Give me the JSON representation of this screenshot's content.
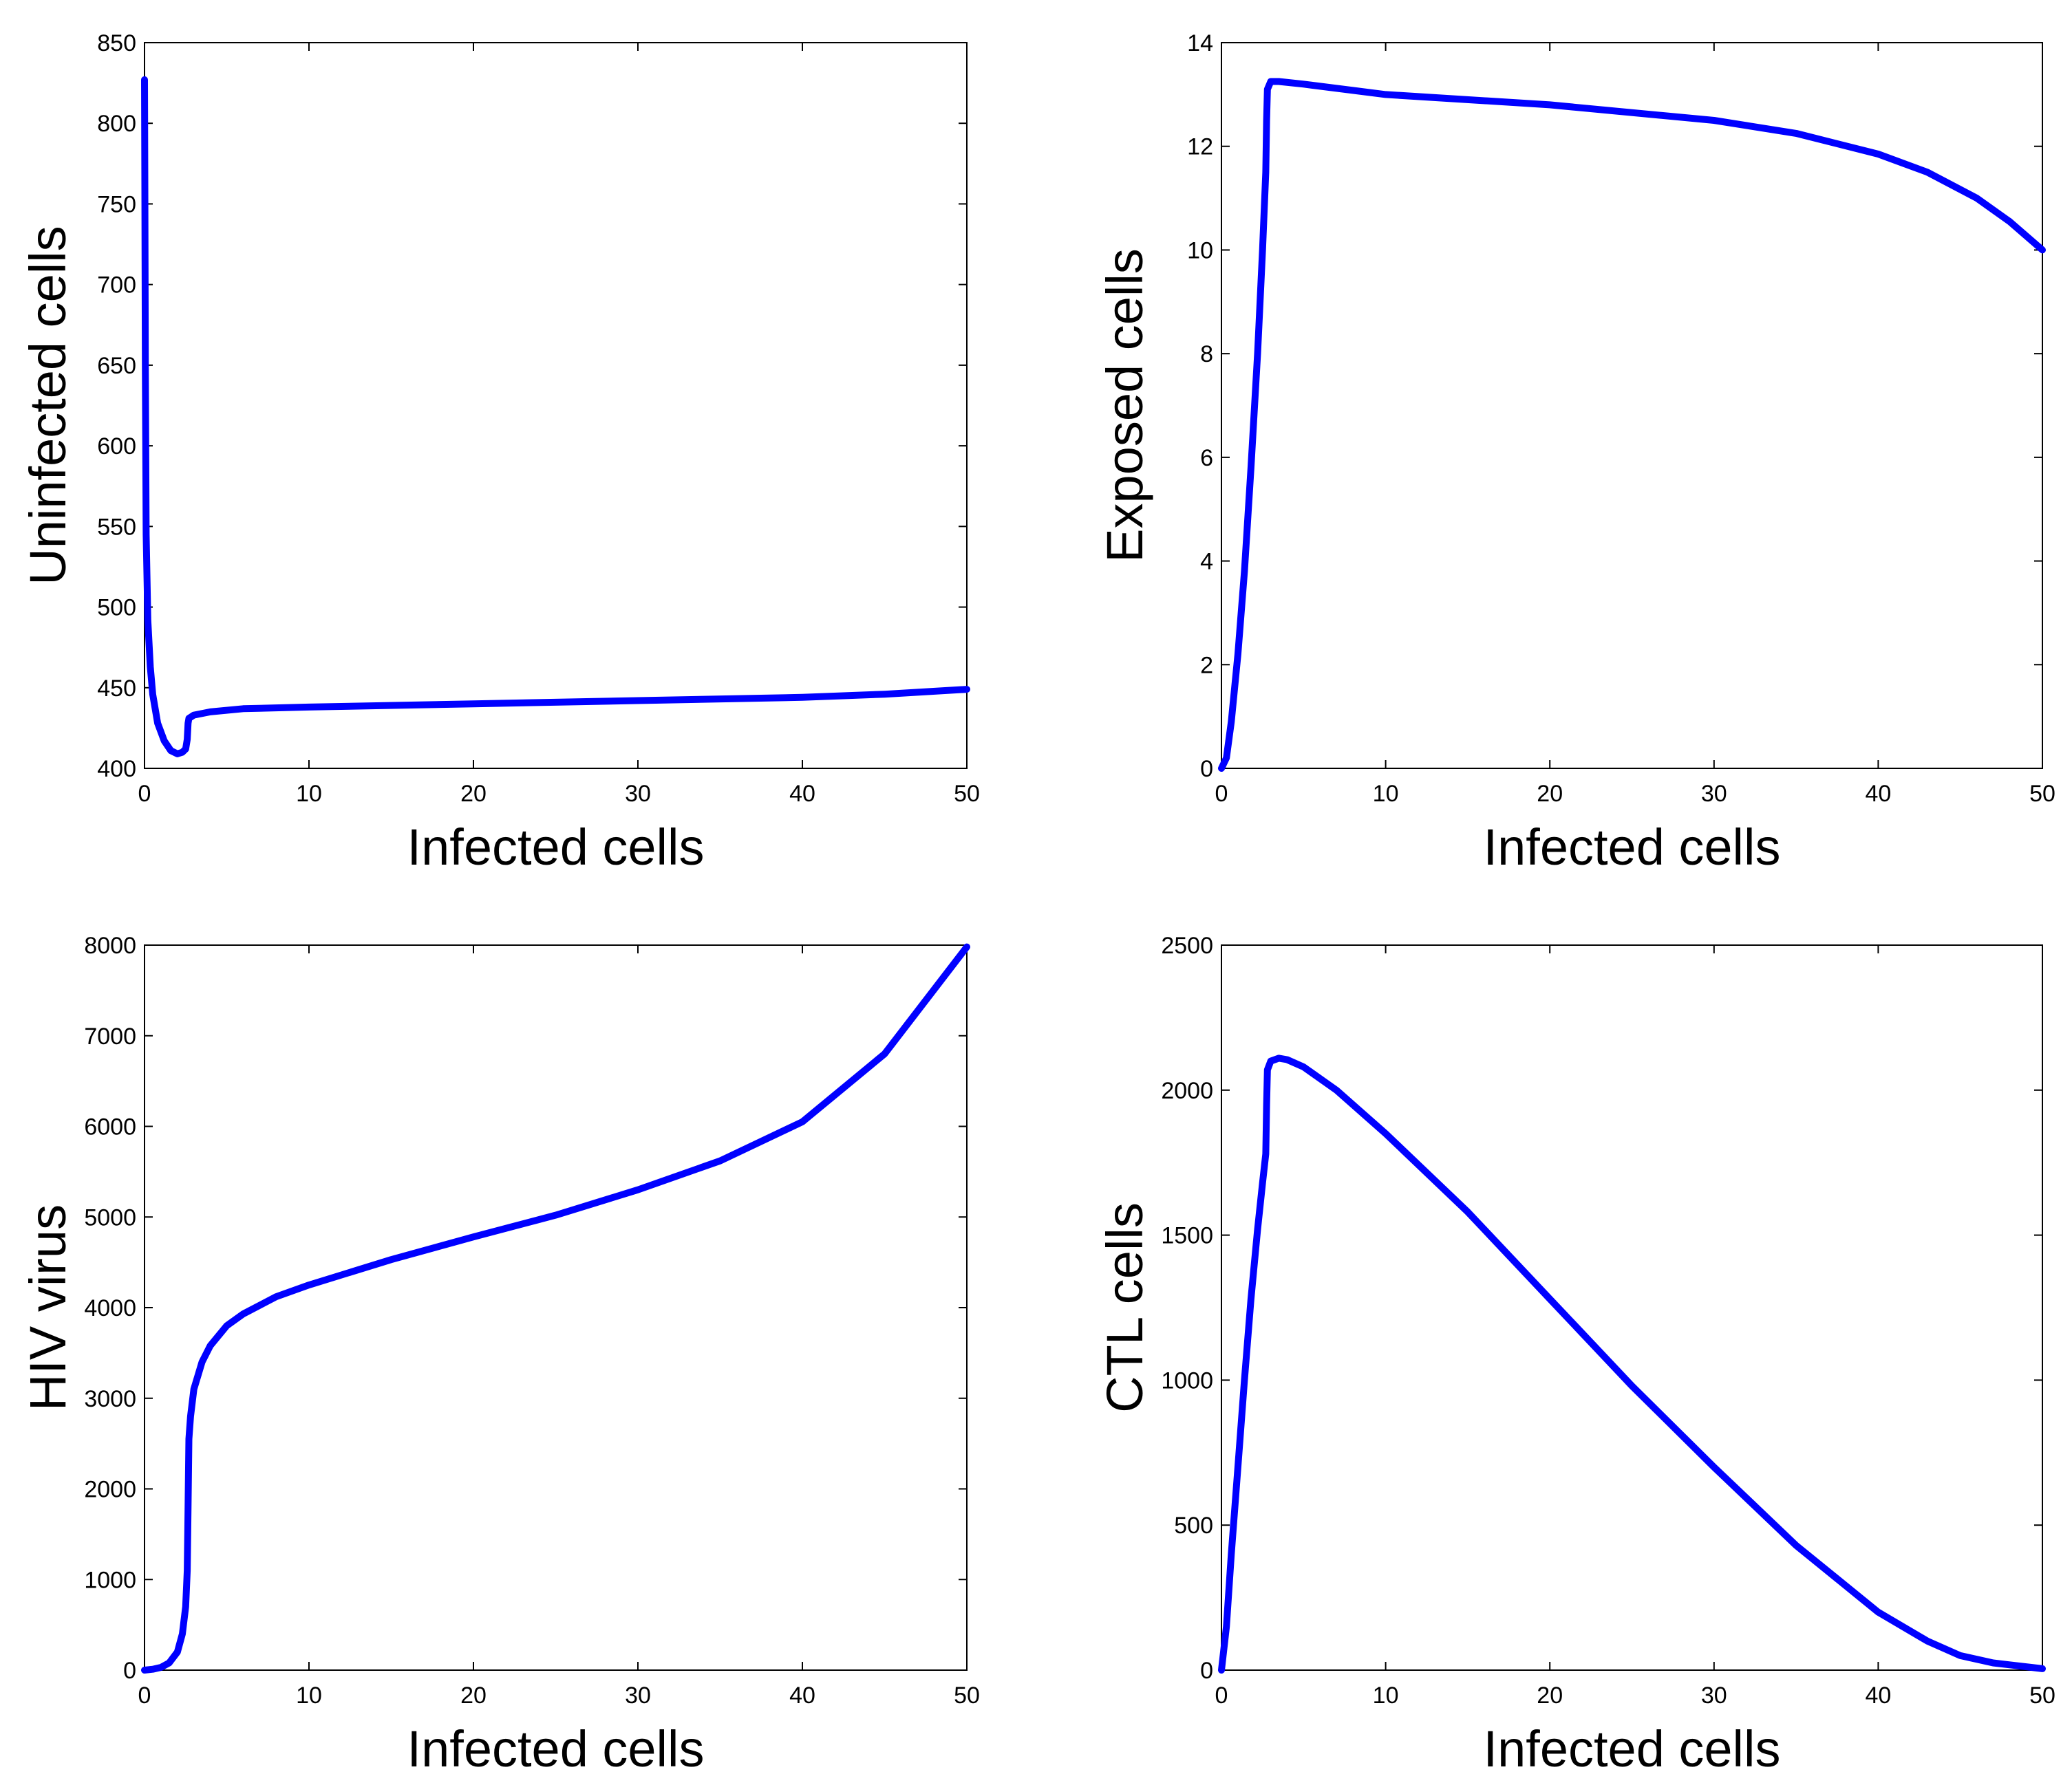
{
  "chart_data": [
    {
      "type": "line",
      "xlabel": "Infected cells",
      "ylabel": "Uninfected cells",
      "xlim": [
        0,
        50
      ],
      "ylim": [
        400,
        850
      ],
      "xticks": [
        "0",
        "10",
        "20",
        "30",
        "40",
        "50"
      ],
      "yticks": [
        "400",
        "450",
        "500",
        "550",
        "600",
        "650",
        "700",
        "750",
        "800",
        "850"
      ],
      "grid": false,
      "series": [
        {
          "name": "Uninfected cells",
          "color": "#0000ff",
          "x": [
            0,
            0.02,
            0.05,
            0.1,
            0.2,
            0.35,
            0.5,
            0.8,
            1.2,
            1.6,
            2.0,
            2.3,
            2.5,
            2.6,
            2.65,
            2.7,
            3,
            4,
            6,
            10,
            20,
            30,
            40,
            45,
            50
          ],
          "y": [
            827,
            760,
            650,
            545,
            492,
            463,
            446,
            428,
            417,
            411,
            409,
            410,
            412,
            418,
            428,
            431,
            433,
            435,
            437,
            438,
            440,
            442,
            444,
            446,
            449
          ]
        }
      ]
    },
    {
      "type": "line",
      "xlabel": "Infected cells",
      "ylabel": "Exposed cells",
      "xlim": [
        0,
        50
      ],
      "ylim": [
        0,
        14
      ],
      "xticks": [
        "0",
        "10",
        "20",
        "30",
        "40",
        "50"
      ],
      "yticks": [
        "0",
        "2",
        "4",
        "6",
        "8",
        "10",
        "12",
        "14"
      ],
      "grid": false,
      "series": [
        {
          "name": "Exposed cells",
          "color": "#0000ff",
          "x": [
            0,
            0.3,
            0.6,
            1.0,
            1.4,
            1.8,
            2.2,
            2.5,
            2.7,
            2.75,
            2.8,
            3.0,
            3.5,
            5,
            10,
            20,
            30,
            35,
            40,
            43,
            46,
            48,
            50
          ],
          "y": [
            0,
            0.2,
            0.9,
            2.2,
            3.8,
            5.8,
            8.0,
            10.0,
            11.5,
            12.5,
            13.1,
            13.25,
            13.25,
            13.2,
            13.0,
            12.8,
            12.5,
            12.25,
            11.85,
            11.5,
            11.0,
            10.55,
            10.0
          ]
        }
      ]
    },
    {
      "type": "line",
      "xlabel": "Infected cells",
      "ylabel": "HIV virus",
      "xlim": [
        0,
        50
      ],
      "ylim": [
        0,
        8000
      ],
      "xticks": [
        "0",
        "10",
        "20",
        "30",
        "40",
        "50"
      ],
      "yticks": [
        "0",
        "1000",
        "2000",
        "3000",
        "4000",
        "5000",
        "6000",
        "7000",
        "8000"
      ],
      "grid": false,
      "series": [
        {
          "name": "HIV virus",
          "color": "#0000ff",
          "x": [
            0,
            0.5,
            1.0,
            1.5,
            2.0,
            2.3,
            2.5,
            2.6,
            2.65,
            2.7,
            2.8,
            3.0,
            3.5,
            4,
            5,
            6,
            8,
            10,
            15,
            20,
            25,
            30,
            35,
            40,
            45,
            50
          ],
          "y": [
            0,
            10,
            30,
            80,
            200,
            400,
            700,
            1100,
            1800,
            2550,
            2800,
            3100,
            3400,
            3580,
            3800,
            3930,
            4120,
            4250,
            4530,
            4780,
            5020,
            5300,
            5620,
            6050,
            6800,
            7980
          ]
        }
      ]
    },
    {
      "type": "line",
      "xlabel": "Infected cells",
      "ylabel": "CTL cells",
      "xlim": [
        0,
        50
      ],
      "ylim": [
        0,
        2500
      ],
      "xticks": [
        "0",
        "10",
        "20",
        "30",
        "40",
        "50"
      ],
      "yticks": [
        "0",
        "500",
        "1000",
        "1500",
        "2000",
        "2500"
      ],
      "grid": false,
      "series": [
        {
          "name": "CTL cells",
          "color": "#0000ff",
          "x": [
            0,
            0.3,
            0.6,
            1.0,
            1.4,
            1.8,
            2.2,
            2.5,
            2.7,
            2.75,
            2.8,
            3.0,
            3.5,
            4,
            5,
            7,
            10,
            15,
            20,
            25,
            30,
            35,
            40,
            43,
            45,
            47,
            50
          ],
          "y": [
            0,
            150,
            400,
            700,
            1000,
            1280,
            1520,
            1680,
            1780,
            1950,
            2070,
            2100,
            2110,
            2105,
            2080,
            2000,
            1850,
            1580,
            1280,
            980,
            700,
            430,
            200,
            100,
            50,
            25,
            5
          ]
        }
      ]
    }
  ]
}
